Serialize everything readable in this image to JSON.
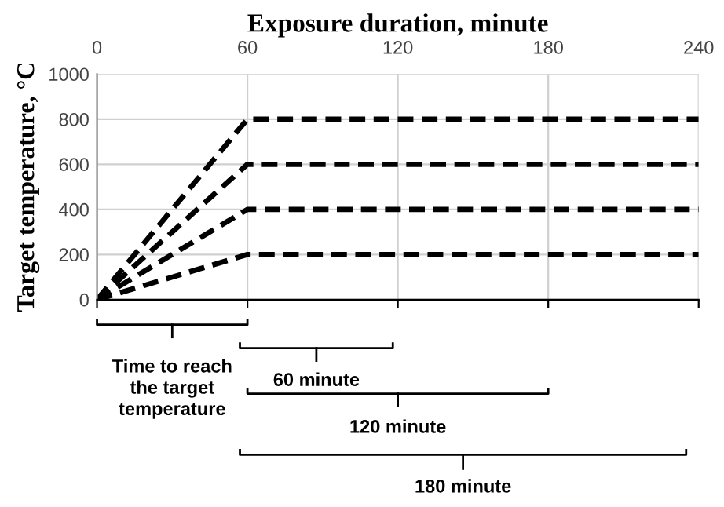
{
  "chart_data": {
    "type": "line",
    "xlabel": "Exposure duration, minute",
    "ylabel": "Target temperature, °C",
    "x": [
      0,
      60,
      240
    ],
    "series": [
      {
        "color": "#000000",
        "values": [
          0,
          800,
          800
        ]
      },
      {
        "color": "#000000",
        "values": [
          0,
          600,
          600
        ]
      },
      {
        "color": "#000000",
        "values": [
          0,
          400,
          400
        ]
      },
      {
        "color": "#000000",
        "values": [
          0,
          200,
          200
        ]
      }
    ],
    "xlim": [
      0,
      240
    ],
    "xticks": [
      0,
      60,
      120,
      180,
      240
    ],
    "ylim": [
      0,
      1000
    ],
    "yticks": [
      0,
      200,
      400,
      600,
      800,
      1000
    ],
    "grid": true,
    "line_style": "dashed",
    "marker": "none",
    "annotations": [
      "Time to reach\nthe target\ntemperature",
      "60 minute",
      "120 minute",
      "180 minute"
    ]
  }
}
